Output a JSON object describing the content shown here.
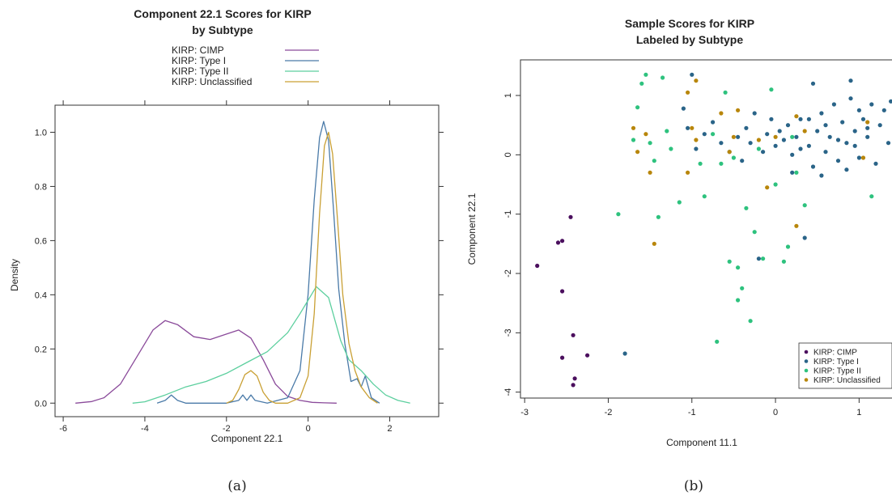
{
  "chart_data": [
    {
      "type": "line",
      "title": "Component 22.1 Scores for KIRP",
      "subtitle": "by Subtype",
      "xlabel": "Component 22.1",
      "ylabel": "Density",
      "xlim": [
        -6.2,
        3.2
      ],
      "ylim": [
        -0.05,
        1.1
      ],
      "xticks": [
        -6,
        -4,
        -2,
        0,
        2
      ],
      "yticks": [
        0.0,
        0.2,
        0.4,
        0.6,
        0.8,
        1.0
      ],
      "legend_position": "top",
      "series": [
        {
          "name": "KIRP: CIMP",
          "color": "#8a4a9a",
          "x": [
            -5.7,
            -5.3,
            -5.0,
            -4.6,
            -4.2,
            -3.8,
            -3.5,
            -3.2,
            -2.8,
            -2.4,
            -2.0,
            -1.7,
            -1.4,
            -1.1,
            -0.8,
            -0.5,
            -0.2,
            0.1,
            0.4,
            0.7
          ],
          "y": [
            0.0,
            0.006,
            0.02,
            0.07,
            0.17,
            0.27,
            0.305,
            0.29,
            0.245,
            0.235,
            0.255,
            0.27,
            0.24,
            0.16,
            0.07,
            0.025,
            0.01,
            0.003,
            0.001,
            0.0
          ]
        },
        {
          "name": "KIRP: Type I",
          "color": "#4a7aa8",
          "x": [
            -3.7,
            -3.5,
            -3.35,
            -3.2,
            -3.0,
            -2.5,
            -2.0,
            -1.7,
            -1.6,
            -1.5,
            -1.4,
            -1.3,
            -1.0,
            -0.5,
            -0.2,
            0.0,
            0.15,
            0.28,
            0.38,
            0.5,
            0.62,
            0.75,
            0.9,
            1.05,
            1.2,
            1.3,
            1.4,
            1.55,
            1.75
          ],
          "y": [
            0.0,
            0.01,
            0.03,
            0.01,
            0.0,
            0.0,
            0.0,
            0.01,
            0.03,
            0.01,
            0.03,
            0.01,
            0.0,
            0.02,
            0.12,
            0.4,
            0.75,
            0.98,
            1.04,
            0.97,
            0.72,
            0.42,
            0.22,
            0.08,
            0.09,
            0.06,
            0.1,
            0.02,
            0.0
          ]
        },
        {
          "name": "KIRP: Type II",
          "color": "#5ccf9e",
          "x": [
            -4.3,
            -4.0,
            -3.5,
            -3.0,
            -2.5,
            -2.0,
            -1.5,
            -1.0,
            -0.5,
            -0.2,
            0.2,
            0.5,
            0.8,
            1.0,
            1.3,
            1.6,
            1.9,
            2.2,
            2.5
          ],
          "y": [
            0.0,
            0.005,
            0.03,
            0.06,
            0.08,
            0.11,
            0.15,
            0.19,
            0.26,
            0.33,
            0.43,
            0.39,
            0.23,
            0.16,
            0.12,
            0.07,
            0.03,
            0.01,
            0.0
          ]
        },
        {
          "name": "KIRP: Unclassified",
          "color": "#c9a034",
          "x": [
            -2.0,
            -1.85,
            -1.7,
            -1.55,
            -1.4,
            -1.25,
            -1.1,
            -0.95,
            -0.8,
            -0.5,
            -0.2,
            0.0,
            0.15,
            0.28,
            0.4,
            0.5,
            0.6,
            0.72,
            0.85,
            1.0,
            1.15,
            1.3,
            1.5,
            1.7
          ],
          "y": [
            0.0,
            0.01,
            0.05,
            0.105,
            0.12,
            0.1,
            0.04,
            0.01,
            0.0,
            0.0,
            0.02,
            0.1,
            0.33,
            0.7,
            0.95,
            1.0,
            0.92,
            0.68,
            0.4,
            0.22,
            0.12,
            0.06,
            0.02,
            0.0
          ]
        }
      ]
    },
    {
      "type": "scatter",
      "title": "Sample Scores for KIRP",
      "subtitle": "Labeled by Subtype",
      "xlabel": "Component 11.1",
      "ylabel": "Component 22.1",
      "xlim": [
        -3.05,
        1.5
      ],
      "ylim": [
        -4.1,
        1.6
      ],
      "xticks": [
        -3,
        -2,
        -1,
        0,
        1
      ],
      "yticks": [
        -4,
        -3,
        -2,
        -1,
        0,
        1
      ],
      "legend_position": "bottom-right",
      "series": [
        {
          "name": "KIRP: CIMP",
          "color": "#4b0f5e",
          "points": [
            [
              -2.85,
              -1.87
            ],
            [
              -2.6,
              -1.48
            ],
            [
              -2.55,
              -1.45
            ],
            [
              -2.45,
              -1.05
            ],
            [
              -2.55,
              -2.3
            ],
            [
              -2.42,
              -3.04
            ],
            [
              -2.55,
              -3.42
            ],
            [
              -2.4,
              -3.77
            ],
            [
              -2.42,
              -3.88
            ],
            [
              -2.25,
              -3.38
            ]
          ]
        },
        {
          "name": "KIRP: Type I",
          "color": "#2a6488",
          "points": [
            [
              -1.8,
              -3.35
            ],
            [
              -1.0,
              1.35
            ],
            [
              -1.1,
              0.78
            ],
            [
              -1.05,
              0.45
            ],
            [
              -0.95,
              0.1
            ],
            [
              -0.85,
              0.35
            ],
            [
              -0.75,
              0.55
            ],
            [
              -0.65,
              0.2
            ],
            [
              -0.55,
              0.05
            ],
            [
              -0.45,
              0.3
            ],
            [
              -0.4,
              -0.1
            ],
            [
              -0.35,
              0.45
            ],
            [
              -0.3,
              0.2
            ],
            [
              -0.25,
              0.7
            ],
            [
              -0.2,
              -1.75
            ],
            [
              -0.15,
              0.05
            ],
            [
              -0.1,
              0.35
            ],
            [
              -0.05,
              0.6
            ],
            [
              0.0,
              0.15
            ],
            [
              0.05,
              0.4
            ],
            [
              0.1,
              0.25
            ],
            [
              0.15,
              0.5
            ],
            [
              0.2,
              0.0
            ],
            [
              0.25,
              0.3
            ],
            [
              0.3,
              0.6
            ],
            [
              0.35,
              -1.4
            ],
            [
              0.4,
              0.15
            ],
            [
              0.45,
              1.2
            ],
            [
              0.45,
              -0.2
            ],
            [
              0.5,
              0.4
            ],
            [
              0.55,
              0.7
            ],
            [
              0.6,
              0.05
            ],
            [
              0.65,
              0.3
            ],
            [
              0.7,
              0.85
            ],
            [
              0.75,
              -0.1
            ],
            [
              0.8,
              0.55
            ],
            [
              0.85,
              0.2
            ],
            [
              0.9,
              0.95
            ],
            [
              0.95,
              0.4
            ],
            [
              1.0,
              0.75
            ],
            [
              1.0,
              -0.05
            ],
            [
              1.05,
              0.6
            ],
            [
              1.1,
              0.3
            ],
            [
              1.15,
              0.85
            ],
            [
              1.2,
              -0.15
            ],
            [
              1.25,
              0.5
            ],
            [
              1.3,
              0.75
            ],
            [
              1.35,
              0.2
            ],
            [
              1.38,
              0.9
            ],
            [
              1.45,
              0.8
            ],
            [
              0.2,
              -0.3
            ],
            [
              0.6,
              0.5
            ],
            [
              0.75,
              0.25
            ],
            [
              0.85,
              -0.25
            ],
            [
              0.95,
              0.15
            ],
            [
              0.55,
              -0.35
            ],
            [
              0.4,
              0.6
            ],
            [
              0.3,
              0.1
            ],
            [
              1.1,
              0.45
            ],
            [
              0.9,
              1.25
            ]
          ]
        },
        {
          "name": "KIRP: Type II",
          "color": "#2ec27e",
          "points": [
            [
              -1.55,
              1.35
            ],
            [
              -1.6,
              1.2
            ],
            [
              -1.35,
              1.3
            ],
            [
              -1.65,
              0.8
            ],
            [
              -1.7,
              0.25
            ],
            [
              -1.5,
              0.2
            ],
            [
              -1.45,
              -0.1
            ],
            [
              -1.3,
              0.4
            ],
            [
              -1.25,
              0.1
            ],
            [
              -1.15,
              -0.8
            ],
            [
              -1.4,
              -1.05
            ],
            [
              -1.88,
              -1.0
            ],
            [
              -0.85,
              -0.7
            ],
            [
              -0.9,
              -0.15
            ],
            [
              -0.75,
              0.35
            ],
            [
              -0.6,
              1.05
            ],
            [
              -0.5,
              -0.05
            ],
            [
              -0.45,
              -1.9
            ],
            [
              -0.35,
              -0.9
            ],
            [
              -0.25,
              -1.3
            ],
            [
              -0.4,
              -2.25
            ],
            [
              -0.45,
              -2.45
            ],
            [
              -0.55,
              -1.8
            ],
            [
              -0.7,
              -3.15
            ],
            [
              -0.3,
              -2.8
            ],
            [
              -0.15,
              -1.75
            ],
            [
              0.1,
              -1.8
            ],
            [
              0.15,
              -1.55
            ],
            [
              0.35,
              -0.85
            ],
            [
              0.0,
              -0.5
            ],
            [
              -0.05,
              1.1
            ],
            [
              0.2,
              0.3
            ],
            [
              0.25,
              -0.3
            ],
            [
              1.15,
              -0.7
            ],
            [
              -0.2,
              0.1
            ],
            [
              -0.65,
              -0.15
            ]
          ]
        },
        {
          "name": "KIRP: Unclassified",
          "color": "#b8860b",
          "points": [
            [
              -1.7,
              0.45
            ],
            [
              -1.65,
              0.05
            ],
            [
              -1.55,
              0.35
            ],
            [
              -1.05,
              1.05
            ],
            [
              -0.95,
              1.25
            ],
            [
              -1.0,
              0.45
            ],
            [
              -0.95,
              0.25
            ],
            [
              -0.65,
              0.7
            ],
            [
              -0.45,
              0.75
            ],
            [
              -0.5,
              0.3
            ],
            [
              -0.55,
              0.05
            ],
            [
              -0.2,
              0.25
            ],
            [
              -0.1,
              -0.55
            ],
            [
              0.0,
              0.3
            ],
            [
              0.25,
              -1.2
            ],
            [
              0.25,
              0.65
            ],
            [
              0.35,
              0.4
            ],
            [
              -1.45,
              -1.5
            ],
            [
              -1.05,
              -0.3
            ],
            [
              1.1,
              0.55
            ],
            [
              1.05,
              -0.05
            ],
            [
              -1.5,
              -0.3
            ]
          ]
        }
      ]
    }
  ],
  "captions": {
    "a": "(a)",
    "b": "(b)"
  }
}
